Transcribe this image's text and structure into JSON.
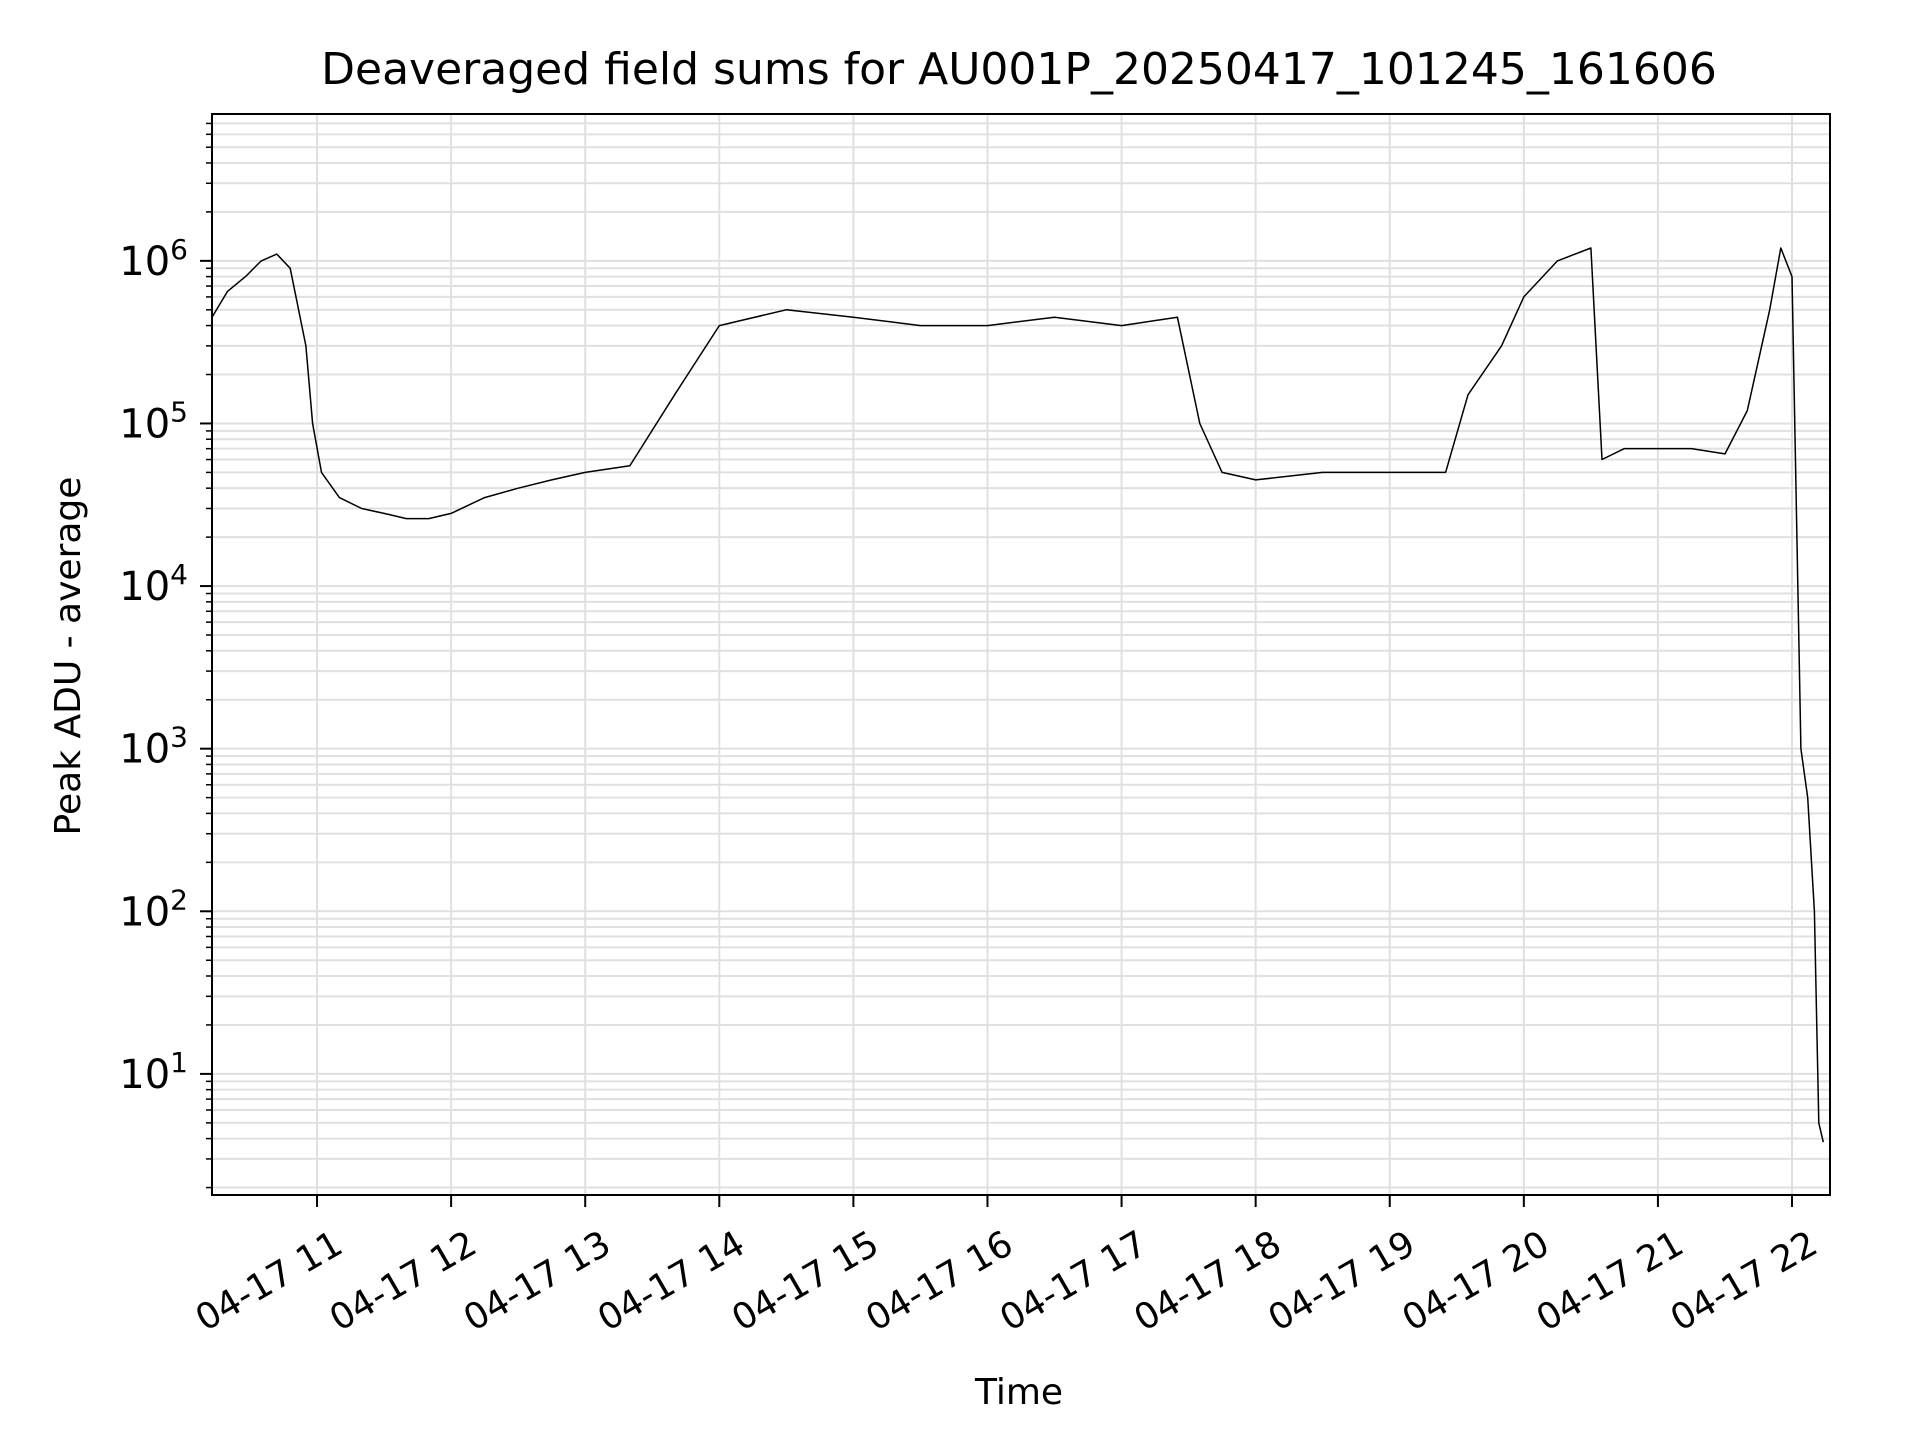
{
  "chart_data": {
    "type": "line",
    "title": "Deaveraged field sums for AU001P_20250417_101245_161606",
    "xlabel": "Time",
    "ylabel": "Peak ADU - average",
    "x_scale": "time",
    "y_scale": "log",
    "xlim": [
      "04-17 10:13",
      "04-17 22:17"
    ],
    "ylim": [
      1.8,
      8000000.0
    ],
    "x_ticks": [
      "04-17 11",
      "04-17 12",
      "04-17 13",
      "04-17 14",
      "04-17 15",
      "04-17 16",
      "04-17 17",
      "04-17 18",
      "04-17 19",
      "04-17 20",
      "04-17 21",
      "04-17 22"
    ],
    "y_ticks": [
      {
        "value": 10,
        "base": "10",
        "exp": "1"
      },
      {
        "value": 100,
        "base": "10",
        "exp": "2"
      },
      {
        "value": 1000,
        "base": "10",
        "exp": "3"
      },
      {
        "value": 10000,
        "base": "10",
        "exp": "4"
      },
      {
        "value": 100000,
        "base": "10",
        "exp": "5"
      },
      {
        "value": 1000000,
        "base": "10",
        "exp": "6"
      }
    ],
    "grid": true,
    "line_color": "#000000",
    "grid_color": "#e0e0e0",
    "series": [
      {
        "points": [
          [
            "04-17 10:13",
            450000.0
          ],
          [
            "04-17 10:20",
            650000.0
          ],
          [
            "04-17 10:28",
            800000.0
          ],
          [
            "04-17 10:35",
            1000000.0
          ],
          [
            "04-17 10:42",
            1100000.0
          ],
          [
            "04-17 10:48",
            900000.0
          ],
          [
            "04-17 10:55",
            300000.0
          ],
          [
            "04-17 10:58",
            100000.0
          ],
          [
            "04-17 11:02",
            50000.0
          ],
          [
            "04-17 11:10",
            35000.0
          ],
          [
            "04-17 11:20",
            30000.0
          ],
          [
            "04-17 11:30",
            28000.0
          ],
          [
            "04-17 11:40",
            26000.0
          ],
          [
            "04-17 11:50",
            26000.0
          ],
          [
            "04-17 12:00",
            28000.0
          ],
          [
            "04-17 12:15",
            35000.0
          ],
          [
            "04-17 12:30",
            40000.0
          ],
          [
            "04-17 12:45",
            45000.0
          ],
          [
            "04-17 13:00",
            50000.0
          ],
          [
            "04-17 13:20",
            55000.0
          ],
          [
            "04-17 13:40",
            150000.0
          ],
          [
            "04-17 14:00",
            400000.0
          ],
          [
            "04-17 14:30",
            500000.0
          ],
          [
            "04-17 15:00",
            450000.0
          ],
          [
            "04-17 15:30",
            400000.0
          ],
          [
            "04-17 16:00",
            400000.0
          ],
          [
            "04-17 16:30",
            450000.0
          ],
          [
            "04-17 17:00",
            400000.0
          ],
          [
            "04-17 17:25",
            450000.0
          ],
          [
            "04-17 17:35",
            100000.0
          ],
          [
            "04-17 17:45",
            50000.0
          ],
          [
            "04-17 18:00",
            45000.0
          ],
          [
            "04-17 18:30",
            50000.0
          ],
          [
            "04-17 19:00",
            50000.0
          ],
          [
            "04-17 19:25",
            50000.0
          ],
          [
            "04-17 19:35",
            150000.0
          ],
          [
            "04-17 19:50",
            300000.0
          ],
          [
            "04-17 20:00",
            600000.0
          ],
          [
            "04-17 20:15",
            1000000.0
          ],
          [
            "04-17 20:30",
            1200000.0
          ],
          [
            "04-17 20:35",
            60000.0
          ],
          [
            "04-17 20:45",
            70000.0
          ],
          [
            "04-17 21:00",
            70000.0
          ],
          [
            "04-17 21:15",
            70000.0
          ],
          [
            "04-17 21:30",
            65000.0
          ],
          [
            "04-17 21:40",
            120000.0
          ],
          [
            "04-17 21:50",
            500000.0
          ],
          [
            "04-17 21:55",
            1200000.0
          ],
          [
            "04-17 22:00",
            800000.0
          ],
          [
            "04-17 22:04",
            1000.0
          ],
          [
            "04-17 22:07",
            500.0
          ],
          [
            "04-17 22:10",
            100.0
          ],
          [
            "04-17 22:12",
            5.0
          ],
          [
            "04-17 22:14",
            3.8
          ]
        ]
      }
    ]
  }
}
